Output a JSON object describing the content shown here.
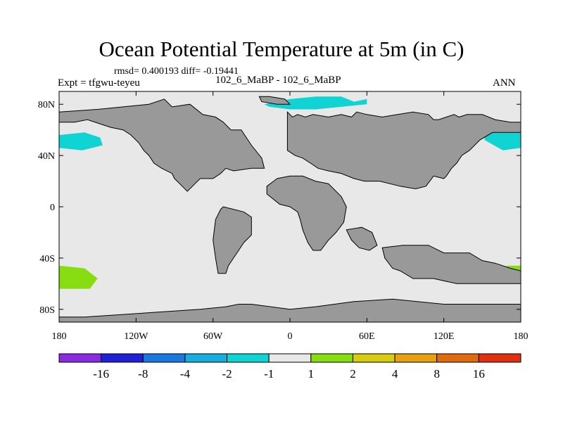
{
  "chart_data": {
    "type": "heatmap",
    "title": "Ocean Potential Temperature at 5m (in C)",
    "stats_text": "rmsd= 0.400193 diff= -0.19441",
    "experiment": "Expt = tfgwu-teyeu",
    "cases": "102_6_MaBP - 102_6_MaBP",
    "season": "ANN",
    "x_ticks": [
      {
        "value": -180,
        "label": "180"
      },
      {
        "value": -120,
        "label": "120W"
      },
      {
        "value": -60,
        "label": "60W"
      },
      {
        "value": 0,
        "label": "0"
      },
      {
        "value": 60,
        "label": "60E"
      },
      {
        "value": 120,
        "label": "120E"
      },
      {
        "value": 180,
        "label": "180"
      }
    ],
    "y_ticks": [
      {
        "value": 80,
        "label": "80N"
      },
      {
        "value": 40,
        "label": "40N"
      },
      {
        "value": 0,
        "label": "0"
      },
      {
        "value": -40,
        "label": "40S"
      },
      {
        "value": -80,
        "label": "80S"
      }
    ],
    "xlim": [
      -180,
      180
    ],
    "ylim": [
      -90,
      90
    ],
    "colorbar": {
      "colors": [
        "#8a2be2",
        "#2020d8",
        "#1a78e0",
        "#16aee0",
        "#10d4d4",
        "#e8e8e8",
        "#88dd10",
        "#d8cc10",
        "#e6a010",
        "#e06a10",
        "#e03010"
      ],
      "labels": [
        "-16",
        "-8",
        "-4",
        "-2",
        "-1",
        "1",
        "2",
        "4",
        "8",
        "16"
      ]
    },
    "land_color": "#999999",
    "ocean_color": "#e8e8e8",
    "land_regions": [
      {
        "name": "north-america",
        "lon": [
          -180,
          -150,
          -110,
          -98,
          -92,
          -78,
          -68,
          -58,
          -52,
          -46,
          -38,
          -30,
          -22,
          -20,
          -30,
          -44,
          -50,
          -54,
          -60,
          -70,
          -76,
          -80,
          -86,
          -90,
          -92,
          -100,
          -106,
          -110,
          -114,
          -118,
          -124,
          -130,
          -140,
          -158,
          -168,
          -180
        ],
        "lat": [
          74,
          76,
          80,
          84,
          78,
          80,
          72,
          70,
          66,
          60,
          60,
          48,
          38,
          30,
          30,
          28,
          30,
          26,
          22,
          22,
          16,
          12,
          18,
          22,
          26,
          30,
          34,
          40,
          44,
          50,
          56,
          60,
          62,
          68,
          66,
          66
        ]
      },
      {
        "name": "greenland-arctic",
        "lon": [
          -24,
          -16,
          -4,
          0,
          -10,
          -22
        ],
        "lat": [
          86,
          86,
          84,
          80,
          80,
          82
        ]
      },
      {
        "name": "eurasia",
        "lon": [
          -2,
          2,
          6,
          12,
          18,
          30,
          40,
          48,
          52,
          60,
          72,
          84,
          96,
          108,
          112,
          116,
          122,
          128,
          132,
          138,
          150,
          160,
          172,
          180,
          180,
          158,
          148,
          140,
          134,
          130,
          126,
          122,
          120,
          112,
          106,
          98,
          86,
          70,
          58,
          50,
          40,
          30,
          22,
          16,
          10,
          4,
          -2
        ],
        "lat": [
          74,
          70,
          72,
          70,
          72,
          70,
          72,
          70,
          74,
          72,
          70,
          72,
          74,
          72,
          68,
          68,
          70,
          72,
          70,
          72,
          72,
          68,
          66,
          66,
          58,
          58,
          52,
          44,
          40,
          34,
          30,
          24,
          22,
          24,
          16,
          14,
          16,
          20,
          20,
          22,
          26,
          28,
          30,
          34,
          38,
          40,
          44
        ]
      },
      {
        "name": "south-america",
        "lon": [
          -52,
          -44,
          -36,
          -30,
          -30,
          -36,
          -40,
          -44,
          -48,
          -50,
          -56,
          -58,
          -60,
          -58,
          -54
        ],
        "lat": [
          0,
          -2,
          -4,
          -8,
          -22,
          -28,
          -34,
          -40,
          -46,
          -52,
          -52,
          -40,
          -26,
          -10,
          -2
        ]
      },
      {
        "name": "africa",
        "lon": [
          -18,
          -10,
          0,
          10,
          20,
          30,
          40,
          44,
          42,
          36,
          30,
          24,
          18,
          14,
          10,
          8,
          6,
          0,
          -8,
          -18
        ],
        "lat": [
          16,
          22,
          24,
          24,
          20,
          18,
          8,
          0,
          -12,
          -20,
          -26,
          -34,
          -34,
          -28,
          -18,
          -10,
          -4,
          0,
          2,
          10
        ]
      },
      {
        "name": "india",
        "lon": [
          44,
          56,
          64,
          68,
          62,
          54,
          48
        ],
        "lat": [
          -18,
          -16,
          -20,
          -30,
          -34,
          -32,
          -26
        ]
      },
      {
        "name": "australia",
        "lon": [
          72,
          88,
          108,
          120,
          140,
          150,
          160,
          172,
          180,
          180,
          150,
          130,
          112,
          96,
          86,
          80,
          74
        ],
        "lat": [
          -32,
          -30,
          -30,
          -36,
          -36,
          -42,
          -44,
          -48,
          -50,
          -60,
          -60,
          -60,
          -56,
          -56,
          -50,
          -48,
          -40
        ]
      },
      {
        "name": "antarctica",
        "lon": [
          -180,
          -160,
          -130,
          -100,
          -70,
          -50,
          -40,
          -30,
          0,
          20,
          50,
          80,
          120,
          180,
          180,
          -180
        ],
        "lat": [
          -86,
          -86,
          -84,
          -82,
          -80,
          -78,
          -76,
          -76,
          -80,
          -78,
          -74,
          -72,
          -76,
          -76,
          -90,
          -90
        ]
      }
    ],
    "anomaly_regions": [
      {
        "name": "cyan-north-pacific-west",
        "color": "#10d4d4",
        "lon": [
          -180,
          -160,
          -148,
          -146,
          -162,
          -180
        ],
        "lat": [
          56,
          58,
          54,
          48,
          44,
          46
        ]
      },
      {
        "name": "cyan-arctic-central",
        "color": "#10d4d4",
        "lon": [
          -20,
          0,
          20,
          40,
          50,
          60,
          60,
          40,
          20,
          0,
          -16
        ],
        "lat": [
          80,
          84,
          86,
          86,
          82,
          84,
          80,
          78,
          76,
          76,
          78
        ]
      },
      {
        "name": "cyan-north-pacific-east",
        "color": "#10d4d4",
        "lon": [
          150,
          160,
          170,
          180,
          180,
          166,
          152
        ],
        "lat": [
          60,
          64,
          62,
          62,
          46,
          44,
          52
        ]
      },
      {
        "name": "cyan-small-1",
        "color": "#10d4d4",
        "lon": [
          -170,
          -164,
          -166
        ],
        "lat": [
          72,
          71,
          69
        ]
      },
      {
        "name": "cyan-small-2",
        "color": "#10d4d4",
        "lon": [
          44,
          50,
          46
        ],
        "lat": [
          64,
          62,
          58
        ]
      },
      {
        "name": "green-south-pacific-west",
        "color": "#88dd10",
        "lon": [
          -180,
          -160,
          -150,
          -156,
          -180
        ],
        "lat": [
          -46,
          -48,
          -56,
          -64,
          -64
        ]
      },
      {
        "name": "green-south-pacific-east",
        "color": "#88dd10",
        "lon": [
          160,
          170,
          180,
          180,
          166
        ],
        "lat": [
          -50,
          -46,
          -46,
          -58,
          -56
        ]
      }
    ]
  }
}
